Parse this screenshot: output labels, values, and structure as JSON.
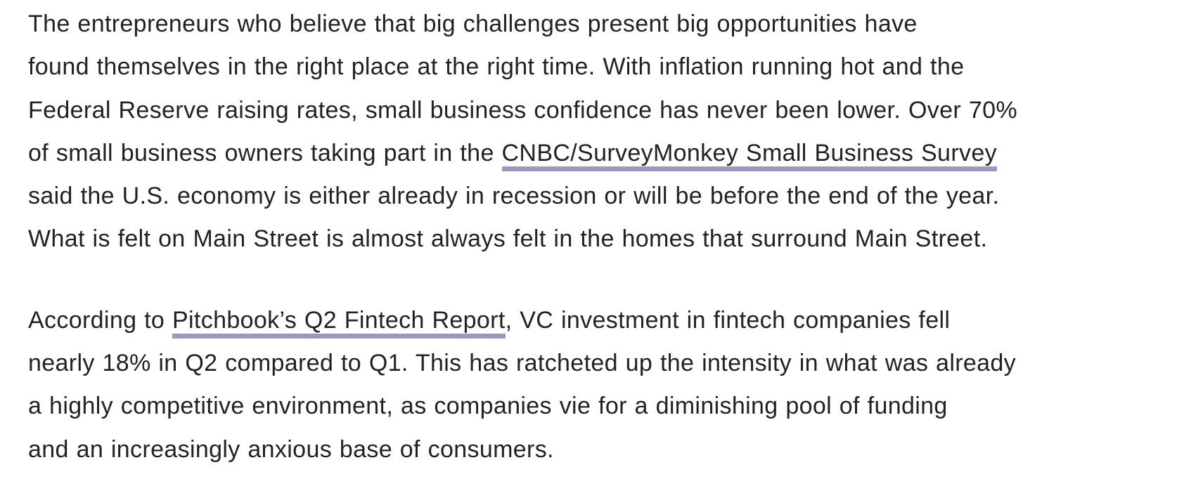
{
  "article": {
    "paragraph_1": {
      "line_1": "The entrepreneurs who believe that big challenges present big opportunities have",
      "line_2": "found themselves in the right place at the right time. With inflation running hot and the",
      "line_3": "Federal Reserve raising rates, small business confidence has never been lower. Over 70%",
      "line_4_before_link": "of small business owners taking part in the ",
      "line_4_link": "CNBC/SurveyMonkey Small Business Survey",
      "line_5": "said the U.S. economy is either already in recession or will be before the end of the year.",
      "line_6": "What is felt on Main Street is almost always felt in the homes that surround Main Street."
    },
    "paragraph_2": {
      "line_1_before_link": "According to ",
      "line_1_link": "Pitchbook’s Q2 Fintech Report",
      "line_1_after_link": ", VC investment in fintech companies fell",
      "line_2": "nearly 18% in Q2 compared to Q1. This has ratcheted up the intensity in what was already",
      "line_3": "a highly competitive environment, as companies vie for a diminishing pool of funding",
      "line_4": "and an increasingly anxious base of consumers."
    }
  },
  "colors": {
    "text": "#222222",
    "link_underline": "#9b97bf",
    "background": "#ffffff"
  }
}
